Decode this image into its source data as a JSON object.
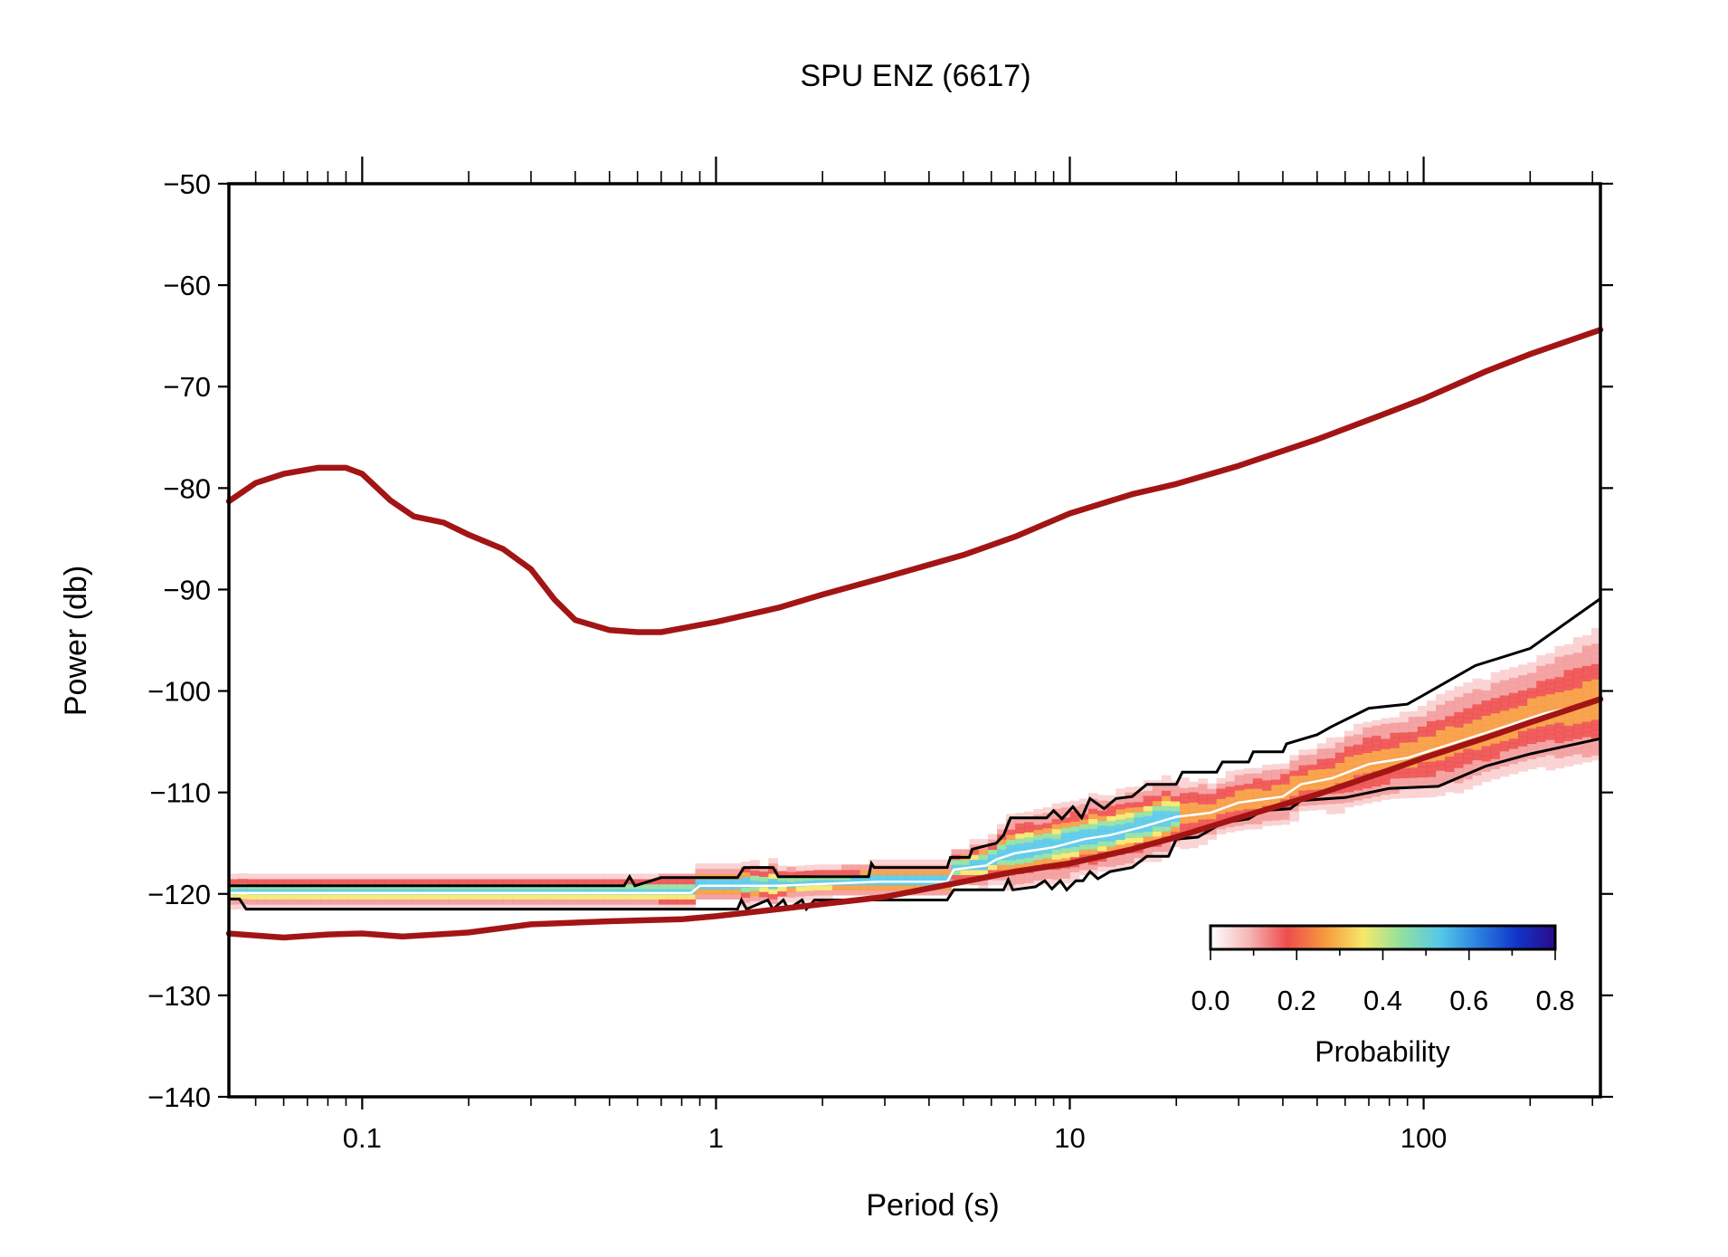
{
  "chart_data": {
    "type": "heatmap",
    "title": "SPU ENZ (6617)",
    "xlabel": "Period (s)",
    "ylabel": "Power (db)",
    "x_scale": "log",
    "xlim": [
      0.042,
      316
    ],
    "ylim": [
      -140,
      -50
    ],
    "x_ticks": [
      {
        "value": 0.1,
        "label": "0.1"
      },
      {
        "value": 1,
        "label": "1"
      },
      {
        "value": 10,
        "label": "10"
      },
      {
        "value": 100,
        "label": "100"
      }
    ],
    "y_ticks": [
      {
        "value": -50,
        "label": "−50"
      },
      {
        "value": -60,
        "label": "−60"
      },
      {
        "value": -70,
        "label": "−70"
      },
      {
        "value": -80,
        "label": "−80"
      },
      {
        "value": -90,
        "label": "−90"
      },
      {
        "value": -100,
        "label": "−100"
      },
      {
        "value": -110,
        "label": "−110"
      },
      {
        "value": -120,
        "label": "−120"
      },
      {
        "value": -130,
        "label": "−130"
      },
      {
        "value": -140,
        "label": "−140"
      }
    ],
    "colorbar": {
      "label": "Probability",
      "range": [
        0,
        0.8
      ],
      "ticks": [
        {
          "value": 0.0,
          "label": "0.0"
        },
        {
          "value": 0.2,
          "label": "0.2"
        },
        {
          "value": 0.4,
          "label": "0.4"
        },
        {
          "value": 0.6,
          "label": "0.6"
        },
        {
          "value": 0.8,
          "label": "0.8"
        }
      ],
      "colors": [
        "#ffffff",
        "#f6b6b6",
        "#ee4d4d",
        "#f79a3e",
        "#f6e86a",
        "#8fe0a0",
        "#56c8e8",
        "#2b7fe0",
        "#1035c8",
        "#2a0a8a"
      ]
    },
    "colors": {
      "noise_model": "#a31515",
      "envelope": "#000000",
      "mode": "#ffffff"
    },
    "series": [
      {
        "key": "nhnm",
        "points": [
          [
            0.042,
            -81.3
          ],
          [
            0.05,
            -79.5
          ],
          [
            0.06,
            -78.6
          ],
          [
            0.075,
            -78.0
          ],
          [
            0.09,
            -78.0
          ],
          [
            0.1,
            -78.6
          ],
          [
            0.12,
            -81.2
          ],
          [
            0.14,
            -82.8
          ],
          [
            0.17,
            -83.4
          ],
          [
            0.2,
            -84.6
          ],
          [
            0.25,
            -86.0
          ],
          [
            0.3,
            -88.0
          ],
          [
            0.35,
            -91.0
          ],
          [
            0.4,
            -93.0
          ],
          [
            0.5,
            -94.0
          ],
          [
            0.6,
            -94.2
          ],
          [
            0.7,
            -94.2
          ],
          [
            1.0,
            -93.2
          ],
          [
            1.5,
            -91.8
          ],
          [
            2.0,
            -90.5
          ],
          [
            3.0,
            -88.8
          ],
          [
            5.0,
            -86.6
          ],
          [
            7.0,
            -84.8
          ],
          [
            10.0,
            -82.5
          ],
          [
            15.0,
            -80.6
          ],
          [
            20.0,
            -79.6
          ],
          [
            30.0,
            -77.8
          ],
          [
            50.0,
            -75.2
          ],
          [
            80.0,
            -72.5
          ],
          [
            100.0,
            -71.2
          ],
          [
            150.0,
            -68.5
          ],
          [
            200.0,
            -66.8
          ],
          [
            316.0,
            -64.4
          ]
        ]
      },
      {
        "key": "nlnm",
        "points": [
          [
            0.042,
            -123.9
          ],
          [
            0.06,
            -124.3
          ],
          [
            0.08,
            -124.0
          ],
          [
            0.1,
            -123.9
          ],
          [
            0.13,
            -124.2
          ],
          [
            0.2,
            -123.8
          ],
          [
            0.3,
            -123.0
          ],
          [
            0.5,
            -122.7
          ],
          [
            0.8,
            -122.5
          ],
          [
            1.0,
            -122.2
          ],
          [
            1.5,
            -121.5
          ],
          [
            2.0,
            -121.0
          ],
          [
            3.0,
            -120.3
          ],
          [
            5.0,
            -118.8
          ],
          [
            7.0,
            -117.8
          ],
          [
            10.0,
            -117.0
          ],
          [
            15.0,
            -115.6
          ],
          [
            20.0,
            -114.4
          ],
          [
            30.0,
            -112.5
          ],
          [
            50.0,
            -110.2
          ],
          [
            80.0,
            -107.8
          ],
          [
            100.0,
            -106.6
          ],
          [
            150.0,
            -104.6
          ],
          [
            200.0,
            -103.1
          ],
          [
            316.0,
            -100.8
          ]
        ]
      },
      {
        "key": "upper-envelope",
        "points": [
          [
            0.042,
            -119.2
          ],
          [
            0.55,
            -119.2
          ],
          [
            0.57,
            -118.3
          ],
          [
            0.59,
            -119.2
          ],
          [
            0.7,
            -118.4
          ],
          [
            1.15,
            -118.4
          ],
          [
            1.2,
            -117.4
          ],
          [
            1.45,
            -117.4
          ],
          [
            1.5,
            -118.3
          ],
          [
            2.7,
            -118.3
          ],
          [
            2.75,
            -117.0
          ],
          [
            2.8,
            -117.4
          ],
          [
            4.5,
            -117.4
          ],
          [
            4.6,
            -116.4
          ],
          [
            5.2,
            -116.4
          ],
          [
            5.3,
            -115.6
          ],
          [
            6.2,
            -115.0
          ],
          [
            6.5,
            -114.2
          ],
          [
            6.8,
            -112.5
          ],
          [
            8.6,
            -112.5
          ],
          [
            9.0,
            -111.8
          ],
          [
            9.5,
            -112.6
          ],
          [
            10.2,
            -111.4
          ],
          [
            10.8,
            -112.5
          ],
          [
            11.4,
            -110.6
          ],
          [
            12.5,
            -111.6
          ],
          [
            13.5,
            -110.6
          ],
          [
            15.0,
            -110.4
          ],
          [
            16.5,
            -109.2
          ],
          [
            20.0,
            -109.2
          ],
          [
            20.8,
            -108.0
          ],
          [
            26.0,
            -108.0
          ],
          [
            27.0,
            -107.0
          ],
          [
            32.0,
            -107.0
          ],
          [
            33.0,
            -106.0
          ],
          [
            40.0,
            -106.0
          ],
          [
            41.0,
            -105.2
          ],
          [
            50.0,
            -104.3
          ],
          [
            55.0,
            -103.5
          ],
          [
            70.0,
            -101.7
          ],
          [
            90.0,
            -101.3
          ],
          [
            100.0,
            -100.4
          ],
          [
            140.0,
            -97.5
          ],
          [
            200.0,
            -95.8
          ],
          [
            250.0,
            -93.4
          ],
          [
            316.0,
            -90.9
          ]
        ]
      },
      {
        "key": "lower-envelope",
        "points": [
          [
            0.042,
            -120.5
          ],
          [
            0.045,
            -120.5
          ],
          [
            0.047,
            -121.5
          ],
          [
            1.15,
            -121.5
          ],
          [
            1.18,
            -120.6
          ],
          [
            1.22,
            -121.5
          ],
          [
            1.4,
            -120.6
          ],
          [
            1.45,
            -121.5
          ],
          [
            1.55,
            -120.6
          ],
          [
            1.6,
            -121.5
          ],
          [
            1.75,
            -120.6
          ],
          [
            1.8,
            -121.5
          ],
          [
            1.9,
            -120.6
          ],
          [
            4.5,
            -120.6
          ],
          [
            4.7,
            -119.6
          ],
          [
            6.5,
            -119.6
          ],
          [
            6.7,
            -118.6
          ],
          [
            6.9,
            -119.6
          ],
          [
            8.0,
            -119.3
          ],
          [
            8.5,
            -118.7
          ],
          [
            8.9,
            -119.5
          ],
          [
            9.4,
            -118.7
          ],
          [
            9.8,
            -119.6
          ],
          [
            10.4,
            -118.7
          ],
          [
            10.9,
            -118.7
          ],
          [
            11.4,
            -117.8
          ],
          [
            12.0,
            -118.5
          ],
          [
            13.0,
            -117.8
          ],
          [
            15.0,
            -117.4
          ],
          [
            16.5,
            -116.3
          ],
          [
            19.0,
            -116.3
          ],
          [
            20.0,
            -114.6
          ],
          [
            23.0,
            -114.4
          ],
          [
            27.0,
            -113.0
          ],
          [
            32.0,
            -112.6
          ],
          [
            35.0,
            -111.8
          ],
          [
            42.0,
            -111.6
          ],
          [
            45.0,
            -110.8
          ],
          [
            60.0,
            -110.5
          ],
          [
            80.0,
            -109.6
          ],
          [
            110.0,
            -109.4
          ],
          [
            150.0,
            -107.4
          ],
          [
            200.0,
            -106.2
          ],
          [
            316.0,
            -104.7
          ]
        ]
      },
      {
        "key": "mode",
        "points": [
          [
            0.042,
            -119.9
          ],
          [
            0.85,
            -119.9
          ],
          [
            0.9,
            -119.2
          ],
          [
            1.5,
            -119.2
          ],
          [
            2.9,
            -118.8
          ],
          [
            4.5,
            -118.8
          ],
          [
            4.7,
            -117.6
          ],
          [
            5.8,
            -117.2
          ],
          [
            6.2,
            -116.6
          ],
          [
            7.0,
            -116.0
          ],
          [
            9.0,
            -115.4
          ],
          [
            11.0,
            -114.6
          ],
          [
            13.0,
            -114.2
          ],
          [
            16.0,
            -113.4
          ],
          [
            20.0,
            -112.4
          ],
          [
            25.0,
            -112.0
          ],
          [
            30.0,
            -111.0
          ],
          [
            40.0,
            -110.4
          ],
          [
            45.0,
            -109.2
          ],
          [
            55.0,
            -108.6
          ],
          [
            70.0,
            -107.2
          ],
          [
            90.0,
            -106.6
          ],
          [
            120.0,
            -105.2
          ],
          [
            160.0,
            -103.8
          ],
          [
            220.0,
            -102.2
          ],
          [
            316.0,
            -101.0
          ]
        ]
      }
    ]
  }
}
